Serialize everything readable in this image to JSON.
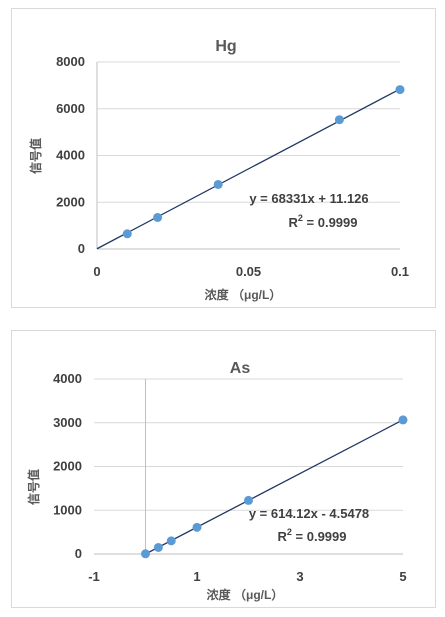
{
  "chart_data": [
    {
      "type": "scatter",
      "title": "Hg",
      "xlabel": "浓度 （μg/L）",
      "ylabel": "信号值",
      "xlim": [
        0,
        0.1
      ],
      "ylim": [
        0,
        8000
      ],
      "x_ticks": [
        "0",
        "0.05",
        "0.1"
      ],
      "y_ticks": [
        "0",
        "2000",
        "4000",
        "6000",
        "8000"
      ],
      "series": [
        {
          "x": [
            0,
            0.01,
            0.02,
            0.04,
            0.08,
            0.1
          ],
          "y": [
            0,
            650,
            1350,
            2760,
            5530,
            6820
          ]
        }
      ],
      "trendline": {
        "slope": 68331,
        "intercept": 11.126
      },
      "equation": "y = 68331x + 11.126",
      "r2_prefix": "R",
      "r2_sup": "2",
      "r2_value": " = 0.9999",
      "color": "#5b9bd5",
      "grid": true
    },
    {
      "type": "scatter",
      "title": "As",
      "xlabel": "浓度 （μg/L）",
      "ylabel": "信号值",
      "xlim": [
        -1,
        5
      ],
      "ylim": [
        0,
        4000
      ],
      "x_ticks": [
        "-1",
        "1",
        "3",
        "5"
      ],
      "y_ticks": [
        "0",
        "1000",
        "2000",
        "3000",
        "4000"
      ],
      "series": [
        {
          "x": [
            0,
            0.25,
            0.5,
            1,
            2,
            5
          ],
          "y": [
            5,
            150,
            300,
            610,
            1225,
            3065
          ]
        }
      ],
      "trendline": {
        "slope": 614.12,
        "intercept": -4.5478
      },
      "equation": "y = 614.12x - 4.5478",
      "r2_prefix": "R",
      "r2_sup": "2",
      "r2_value": " = 0.9999",
      "color": "#5b9bd5",
      "grid": true
    }
  ]
}
